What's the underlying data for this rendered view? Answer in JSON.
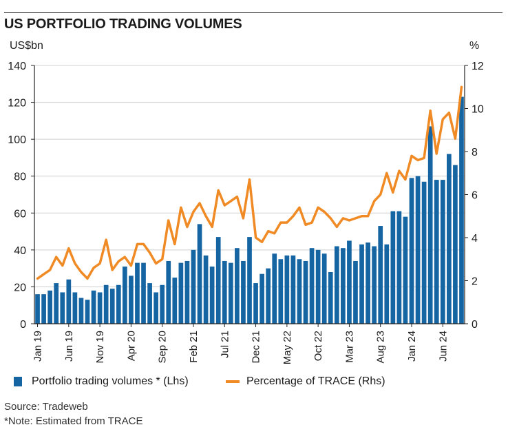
{
  "chart_data": {
    "type": "bar+line",
    "title": "US PORTFOLIO TRADING VOLUMES",
    "ylabel_left": "US$bn",
    "ylabel_right": "%",
    "ylim_left": [
      0,
      140
    ],
    "ylim_right": [
      0,
      12
    ],
    "yticks_left": [
      "0",
      "20",
      "40",
      "60",
      "80",
      "100",
      "120",
      "140"
    ],
    "yticks_right": [
      "0",
      "2",
      "4",
      "6",
      "8",
      "10",
      "12"
    ],
    "x_tick_labels": [
      {
        "label": "Jan 19",
        "index": 0
      },
      {
        "label": "Jun 19",
        "index": 5
      },
      {
        "label": "Nov 19",
        "index": 10
      },
      {
        "label": "Apr 20",
        "index": 15
      },
      {
        "label": "Sep 20",
        "index": 20
      },
      {
        "label": "Feb 21",
        "index": 25
      },
      {
        "label": "Jul 21",
        "index": 30
      },
      {
        "label": "Dec 21",
        "index": 35
      },
      {
        "label": "May 22",
        "index": 40
      },
      {
        "label": "Oct 22",
        "index": 45
      },
      {
        "label": "Mar 23",
        "index": 50
      },
      {
        "label": "Aug 23",
        "index": 55
      },
      {
        "label": "Jan 24",
        "index": 60
      },
      {
        "label": "Jun 24",
        "index": 65
      }
    ],
    "series": [
      {
        "name": "Portfolio trading volumes * (Lhs)",
        "type": "bar",
        "axis": "left",
        "color": "#1565a3",
        "values": [
          16,
          16,
          18,
          22,
          17,
          24,
          17,
          14,
          13,
          18,
          17,
          21,
          19,
          21,
          31,
          26,
          33,
          33,
          22,
          17,
          21,
          34,
          25,
          33,
          34,
          40,
          54,
          37,
          31,
          47,
          34,
          33,
          41,
          34,
          47,
          22,
          27,
          30,
          38,
          35,
          37,
          37,
          35,
          34,
          41,
          40,
          38,
          28,
          42,
          41,
          45,
          34,
          43,
          44,
          42,
          53,
          43,
          61,
          61,
          58,
          79,
          80,
          77,
          107,
          78,
          78,
          92,
          86,
          123
        ]
      },
      {
        "name": "Percentage of TRACE (Rhs)",
        "type": "line",
        "axis": "right",
        "color": "#f08a24",
        "values": [
          2.1,
          2.3,
          2.5,
          3.1,
          2.7,
          3.5,
          2.8,
          2.4,
          2.1,
          2.6,
          2.8,
          3.9,
          2.5,
          2.9,
          3.1,
          2.7,
          3.7,
          3.7,
          3.3,
          2.8,
          3.0,
          4.8,
          3.7,
          5.4,
          4.5,
          5.2,
          5.6,
          5.0,
          4.5,
          6.2,
          5.5,
          5.7,
          5.9,
          4.9,
          6.7,
          4.0,
          3.8,
          4.3,
          4.2,
          4.7,
          4.7,
          5.0,
          5.4,
          4.6,
          4.7,
          5.4,
          5.2,
          4.9,
          4.5,
          4.9,
          4.8,
          4.9,
          5.0,
          5.0,
          5.7,
          6.0,
          7.0,
          6.1,
          7.1,
          6.7,
          7.8,
          7.6,
          7.7,
          9.9,
          7.9,
          9.5,
          9.8,
          8.6,
          11.0
        ]
      }
    ],
    "legend": [
      "Portfolio trading volumes * (Lhs)",
      "Percentage of TRACE (Rhs)"
    ],
    "legend_position": "bottom"
  },
  "footer": {
    "source": "Source: Tradeweb",
    "note": "*Note: Estimated from TRACE"
  }
}
